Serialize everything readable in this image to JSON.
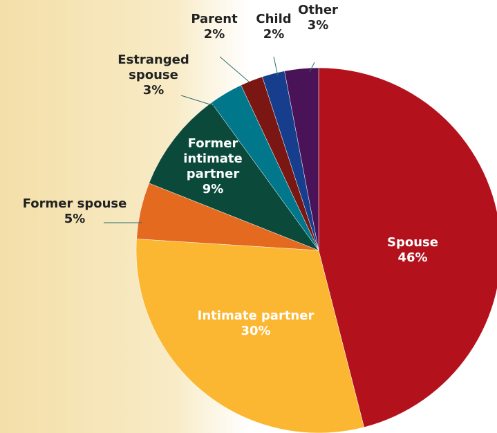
{
  "chart_data": {
    "type": "pie",
    "categories": [
      "Spouse",
      "Intimate partner",
      "Former spouse",
      "Former intimate partner",
      "Estranged spouse",
      "Parent",
      "Child",
      "Other"
    ],
    "values": [
      46,
      30,
      5,
      9,
      3,
      2,
      2,
      3
    ],
    "value_labels": [
      "46%",
      "30%",
      "5%",
      "9%",
      "3%",
      "2%",
      "2%",
      "3%"
    ],
    "colors": [
      "#b3121c",
      "#fbb731",
      "#e46a20",
      "#0b4a3b",
      "#00778b",
      "#7a1712",
      "#173e8c",
      "#4a1257"
    ]
  }
}
